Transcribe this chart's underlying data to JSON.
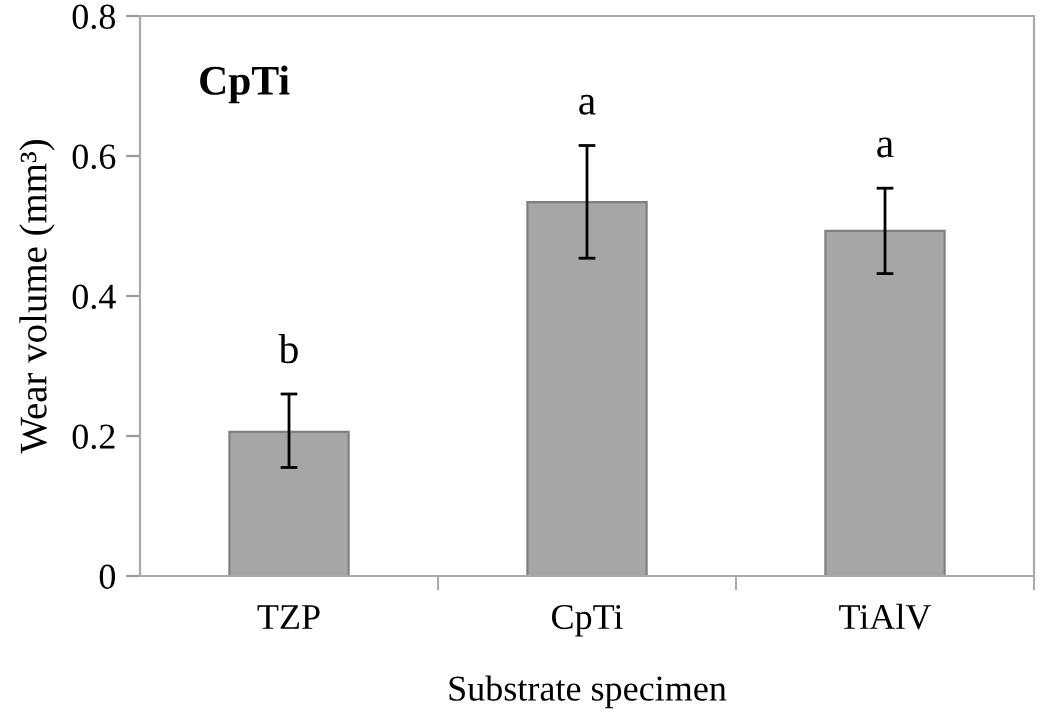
{
  "chart_data": {
    "type": "bar",
    "title": "CpTi",
    "xlabel": "Substrate specimen",
    "ylabel": "Wear volume (mm³)",
    "categories": [
      "TZP",
      "CpTi",
      "TiAlV"
    ],
    "values": [
      0.206,
      0.534,
      0.493
    ],
    "errors": [
      [
        0.155,
        0.26
      ],
      [
        0.454,
        0.615
      ],
      [
        0.432,
        0.554
      ]
    ],
    "color": "#a6a6a6",
    "ylim": [
      0,
      0.8
    ],
    "yticks": [
      0,
      {
        "value": 0.2,
        "label": "0.2"
      },
      {
        "value": 0.4,
        "label": "0.4"
      },
      {
        "value": 0.6,
        "label": "0.6"
      },
      {
        "value": 0.8,
        "label": "0.8"
      }
    ],
    "grid": false,
    "legend": false,
    "annotations": [
      {
        "text": "b",
        "x": "TZP",
        "y": 0.26
      },
      {
        "text": "a",
        "x": "CpTi",
        "y": 0.615
      },
      {
        "text": "a",
        "x": "TiAlV",
        "y": 0.554
      }
    ]
  }
}
